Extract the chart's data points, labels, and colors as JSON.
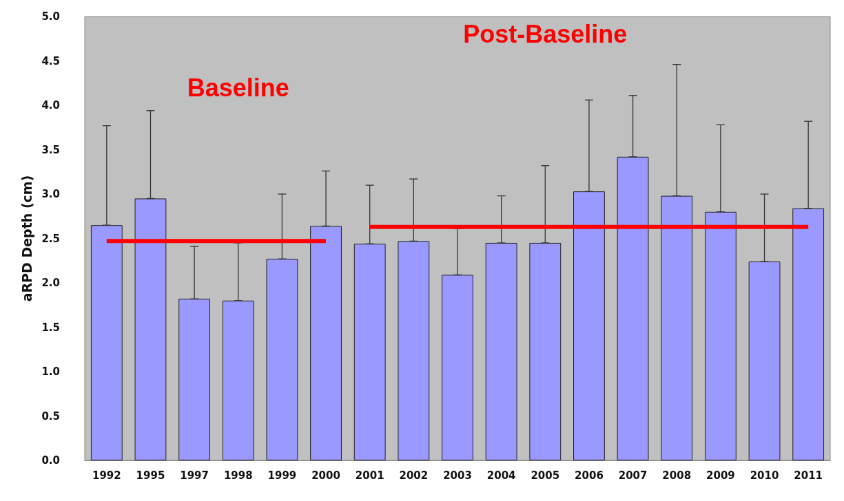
{
  "chart_data": {
    "type": "bar",
    "ylabel": "aRPD Depth (cm)",
    "categories": [
      "1992",
      "1995",
      "1997",
      "1998",
      "1999",
      "2000",
      "2001",
      "2002",
      "2003",
      "2004",
      "2005",
      "2006",
      "2007",
      "2008",
      "2009",
      "2010",
      "2011"
    ],
    "series": [
      {
        "color": "#9999ff",
        "values": [
          2.65,
          2.95,
          1.82,
          1.8,
          2.27,
          2.64,
          2.44,
          2.47,
          2.09,
          2.45,
          2.45,
          3.03,
          3.42,
          2.98,
          2.8,
          2.24,
          2.84
        ],
        "errors": [
          [
            2.65,
            3.77
          ],
          [
            2.95,
            3.94
          ],
          [
            1.82,
            2.41
          ],
          [
            1.8,
            2.45
          ],
          [
            2.27,
            3.0
          ],
          [
            2.64,
            3.26
          ],
          [
            2.44,
            3.1
          ],
          [
            2.47,
            3.17
          ],
          [
            2.09,
            2.61
          ],
          [
            2.45,
            2.98
          ],
          [
            2.45,
            3.32
          ],
          [
            3.03,
            4.06
          ],
          [
            3.42,
            4.11
          ],
          [
            2.98,
            4.46
          ],
          [
            2.8,
            3.78
          ],
          [
            2.24,
            3.0
          ],
          [
            2.84,
            3.82
          ]
        ]
      },
      {
        "type": "line",
        "color": "#ff0000",
        "values": [
          2.47,
          2.47,
          2.47,
          2.47,
          2.47,
          2.47,
          null,
          null,
          null,
          null,
          null,
          null,
          null,
          null,
          null,
          null,
          null
        ]
      },
      {
        "type": "line",
        "color": "#ff0000",
        "values": [
          null,
          null,
          null,
          null,
          null,
          null,
          2.63,
          2.63,
          2.63,
          2.63,
          2.63,
          2.63,
          2.63,
          2.63,
          2.63,
          2.63,
          2.63
        ]
      }
    ],
    "annotations": [
      "Baseline",
      "Post-Baseline"
    ],
    "ylim": [
      0,
      5
    ],
    "yticks": [
      {
        "value": 0,
        "label": "0.0"
      },
      0.5,
      {
        "value": 1,
        "label": "1.0"
      },
      1.5,
      {
        "value": 2,
        "label": "2.0"
      },
      2.5,
      {
        "value": 3,
        "label": "3.0"
      },
      3.5,
      {
        "value": 4,
        "label": "4.0"
      },
      4.5,
      {
        "value": 5,
        "label": "5.0"
      }
    ],
    "grid": false,
    "marker": "none"
  }
}
